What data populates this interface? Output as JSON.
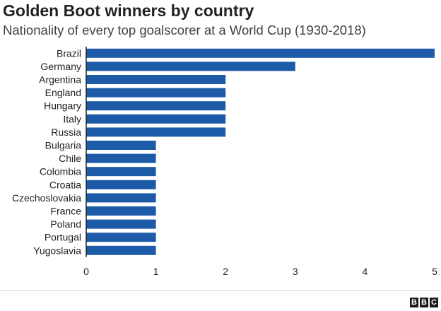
{
  "header": {
    "title": "Golden Boot winners by country",
    "subtitle": "Nationality of every top goalscorer at a World Cup (1930-2018)"
  },
  "logo": {
    "letters": [
      "B",
      "B",
      "C"
    ]
  },
  "colors": {
    "bar": "#1d5aa8",
    "axis": "#222222"
  },
  "chart_data": {
    "type": "bar",
    "orientation": "horizontal",
    "title": "Golden Boot winners by country",
    "subtitle": "Nationality of every top goalscorer at a World Cup (1930-2018)",
    "categories": [
      "Brazil",
      "Germany",
      "Argentina",
      "England",
      "Hungary",
      "Italy",
      "Russia",
      "Bulgaria",
      "Chile",
      "Colombia",
      "Croatia",
      "Czechoslovakia",
      "France",
      "Poland",
      "Portugal",
      "Yugoslavia"
    ],
    "values": [
      5,
      3,
      2,
      2,
      2,
      2,
      2,
      1,
      1,
      1,
      1,
      1,
      1,
      1,
      1,
      1
    ],
    "xlabel": "",
    "ylabel": "",
    "xlim": [
      0,
      5
    ],
    "xticks": [
      0,
      1,
      2,
      3,
      4,
      5
    ],
    "grid": false,
    "legend": "none"
  }
}
